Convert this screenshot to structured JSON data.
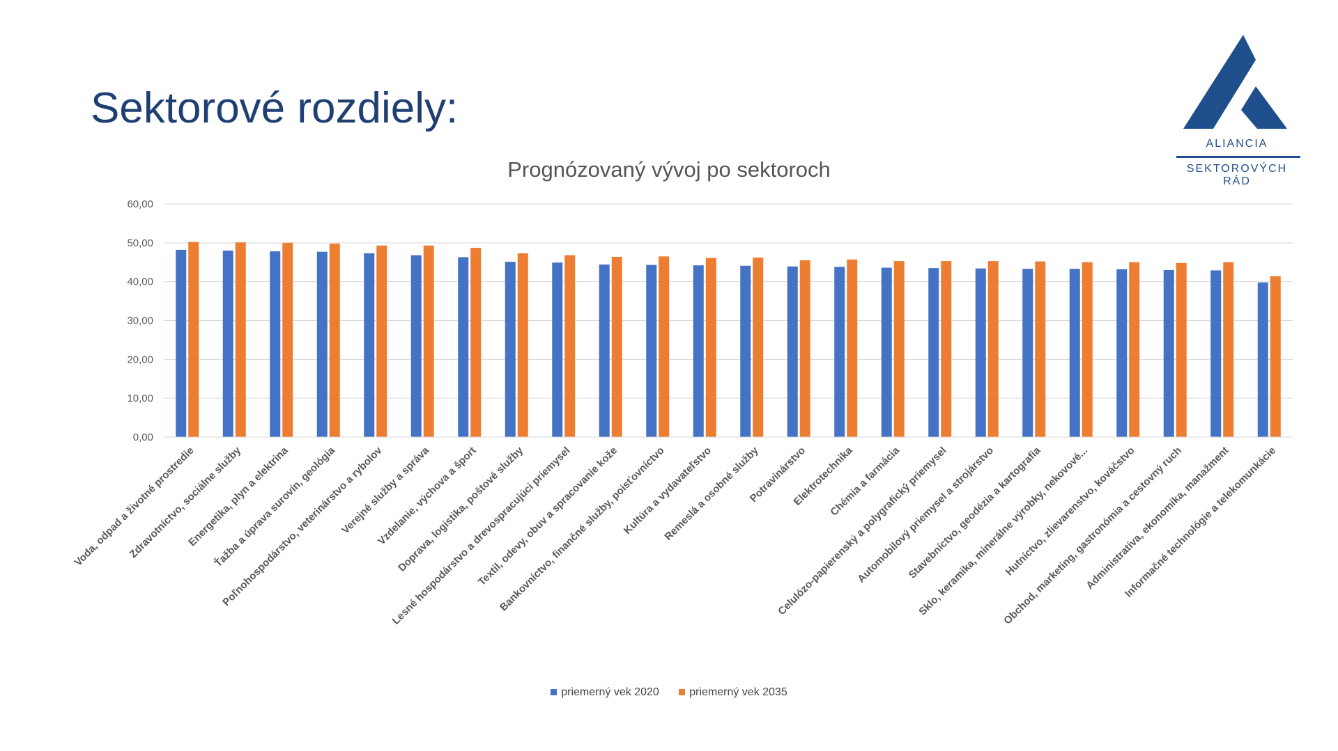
{
  "slide": {
    "title": "Sektorové rozdiely:"
  },
  "logo": {
    "line1": "ALIANCIA",
    "line2": "SEKTOROVÝCH RÁD",
    "color": "#1e4f8c"
  },
  "chart_data": {
    "type": "bar",
    "title": "Prognózovaný vývoj po sektoroch",
    "xlabel": "",
    "ylabel": "",
    "ylim": [
      0,
      60
    ],
    "yticks": [
      "0,00",
      "10,00",
      "20,00",
      "30,00",
      "40,00",
      "50,00",
      "60,00"
    ],
    "grid": true,
    "legend_position": "bottom",
    "categories": [
      "Voda, odpad a životné prostredie",
      "Zdravotníctvo, sociálne služby",
      "Energetika, plyn a elektrina",
      "Ťažba a úprava surovín, geológia",
      "Poľnohospodárstvo, veterinárstvo a rybolov",
      "Verejné služby a správa",
      "Vzdelanie, výchova a šport",
      "Doprava, logistika, poštové služby",
      "Lesné hospodárstvo a drevospracujúci priemysel",
      "Textil, odevy, obuv a spracovanie kože",
      "Bankovníctvo, finančné služby, poisťovníctvo",
      "Kultúra a vydavateľstvo",
      "Remeslá a osobné služby",
      "Potravinárstvo",
      "Elektrotechnika",
      "Chémia a farmácia",
      "Celulózo-papierenský a polygrafický priemysel",
      "Automobilový priemysel a strojárstvo",
      "Stavebníctvo, geodézia a kartografia",
      "Sklo, keramika, minerálne výrobky, nekovové...",
      "Hutníctvo, zlievarenstvo, kováčstvo",
      "Obchod, marketing, gastronómia a cestovný ruch",
      "Administratíva, ekonomika, manažment",
      "Informačné technológie a telekomunkácie"
    ],
    "series": [
      {
        "name": "priemerný vek 2020",
        "color": "#4472c4",
        "values": [
          48.2,
          48.0,
          47.8,
          47.7,
          47.3,
          46.8,
          46.3,
          45.1,
          44.9,
          44.4,
          44.3,
          44.2,
          44.1,
          43.9,
          43.8,
          43.6,
          43.5,
          43.4,
          43.3,
          43.3,
          43.2,
          43.0,
          42.9,
          39.8
        ]
      },
      {
        "name": "priemerný vek 2035",
        "color": "#ed7d31",
        "values": [
          50.2,
          50.1,
          50.0,
          49.8,
          49.3,
          49.3,
          48.7,
          47.3,
          46.8,
          46.4,
          46.5,
          46.1,
          46.2,
          45.5,
          45.7,
          45.3,
          45.3,
          45.3,
          45.2,
          45.0,
          45.0,
          44.8,
          45.0,
          41.4
        ]
      }
    ]
  }
}
